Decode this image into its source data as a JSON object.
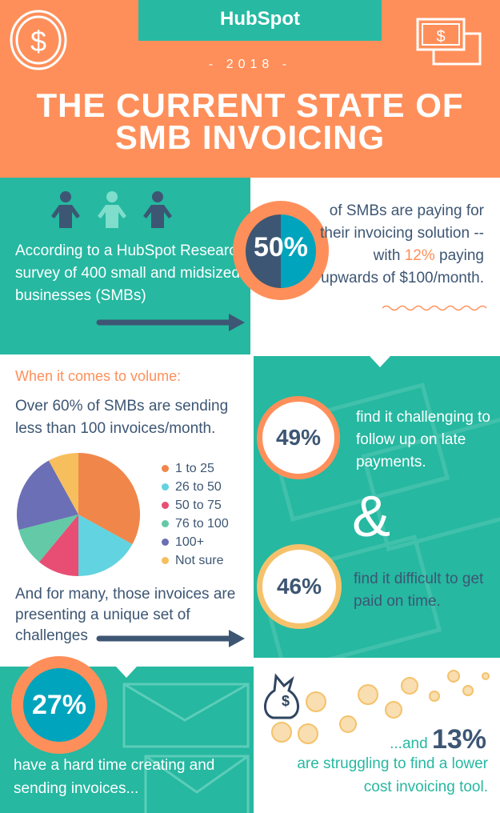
{
  "header": {
    "brand": "HubSpot",
    "year": "- 2018 -",
    "title_line1": "THE CURRENT STATE OF",
    "title_line2": "SMB INVOICING"
  },
  "intro": {
    "text": "According to a HubSpot Research survey of 400 small and midsized businesses (SMBs)",
    "stat": "50%",
    "stat_text_pre": "of SMBs are paying for their invoicing solution -- with ",
    "stat_highlight": "12%",
    "stat_text_post": " paying upwards of $100/month."
  },
  "volume": {
    "heading": "When it comes to volume:",
    "text": "Over 60% of SMBs are sending less than 100 invoices/month.",
    "challenges": "And for many, those invoices are presenting a unique set of challenges"
  },
  "chart_data": {
    "type": "pie",
    "categories": [
      "1 to 25",
      "26 to 50",
      "50 to 75",
      "76 to 100",
      "100+",
      "Not sure"
    ],
    "values": [
      33,
      17,
      11,
      10,
      21,
      8
    ],
    "colors": [
      "#F0864A",
      "#62D3E0",
      "#E84E74",
      "#63C9A6",
      "#6B6FB5",
      "#F7BE5E"
    ],
    "legend": "right"
  },
  "stats": [
    {
      "value": "49%",
      "text": "find it challenging to follow up on late payments.",
      "ring": "#FF8F5A"
    },
    {
      "value": "46%",
      "text": "find it difficult to get paid on time.",
      "ring": "#F5C26B"
    },
    {
      "value": "27%",
      "text": "have a hard time creating and sending invoices...",
      "ring": "#FF8F5A"
    }
  ],
  "ampersand": "&",
  "final": {
    "pre": "...and ",
    "value": "13%",
    "text": "are struggling to find a lower cost invoicing tool."
  },
  "colors": {
    "orange": "#FF8F5A",
    "teal": "#26B8A1",
    "navy": "#3D5673",
    "blue": "#00A4BD"
  }
}
